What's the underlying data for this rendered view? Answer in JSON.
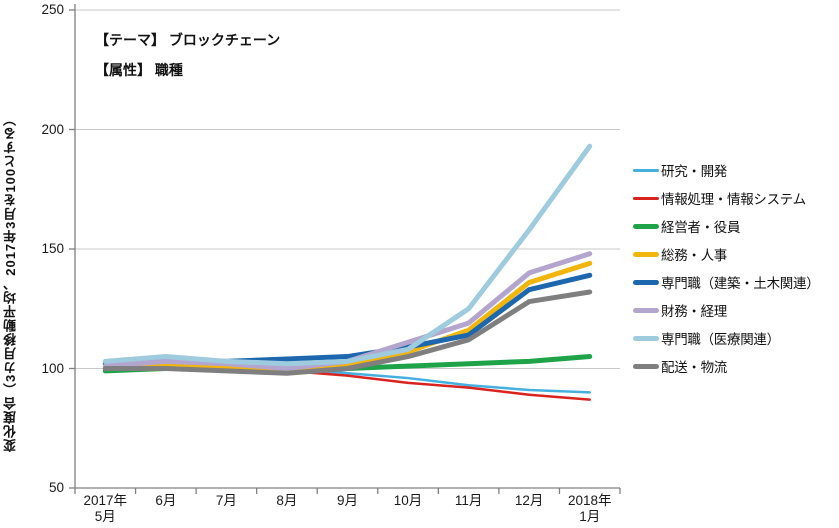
{
  "chart_data": {
    "type": "line",
    "title_lines": [
      "【テーマ】 ブロックチェーン",
      "【属性】 職種"
    ],
    "ylabel": "変化度合（3カ月移動平均、2017年3月を100とする）",
    "ylim": [
      50,
      250
    ],
    "y_ticks": [
      250,
      200,
      150,
      100,
      50
    ],
    "x_labels": [
      "2017年\n5月",
      "6月",
      "7月",
      "8月",
      "9月",
      "10月",
      "11月",
      "12月",
      "2018年\n1月"
    ],
    "grid": "horizontal",
    "legend_position": "right",
    "axis_color": "#808080",
    "gridline_color": "#c9c9c9",
    "series": [
      {
        "name": "研究・開発",
        "color": "#45b0e0",
        "stroke_width": 2.5,
        "z": 1,
        "values": [
          102,
          103,
          102,
          100,
          98,
          96,
          93,
          91,
          90
        ]
      },
      {
        "name": "情報処理・情報システム",
        "color": "#d9231f",
        "stroke_width": 2.5,
        "z": 2,
        "values": [
          101,
          102,
          101,
          99,
          97,
          94,
          92,
          89,
          87
        ]
      },
      {
        "name": "経営者・役員",
        "color": "#1fa348",
        "stroke_width": 5,
        "z": 3,
        "values": [
          99,
          100,
          100,
          99,
          100,
          101,
          102,
          103,
          105
        ]
      },
      {
        "name": "総務・人事",
        "color": "#f2b50c",
        "stroke_width": 5,
        "z": 4,
        "values": [
          100,
          101,
          100,
          99,
          101,
          107,
          116,
          136,
          144
        ]
      },
      {
        "name": "専門職（建築・土木関連）",
        "color": "#1c67ae",
        "stroke_width": 5,
        "z": 5,
        "values": [
          102,
          104,
          103,
          104,
          105,
          109,
          114,
          133,
          139
        ]
      },
      {
        "name": "財務・経理",
        "color": "#b3a5ce",
        "stroke_width": 5,
        "z": 6,
        "values": [
          101,
          103,
          102,
          100,
          103,
          111,
          119,
          140,
          148
        ]
      },
      {
        "name": "専門職（医療関連）",
        "color": "#9fcbde",
        "stroke_width": 5,
        "z": 8,
        "values": [
          103,
          105,
          103,
          102,
          103,
          108,
          125,
          158,
          193
        ]
      },
      {
        "name": "配送・物流",
        "color": "#7f7f7f",
        "stroke_width": 5,
        "z": 7,
        "values": [
          100,
          100,
          99,
          98,
          100,
          105,
          112,
          128,
          132
        ]
      }
    ]
  }
}
